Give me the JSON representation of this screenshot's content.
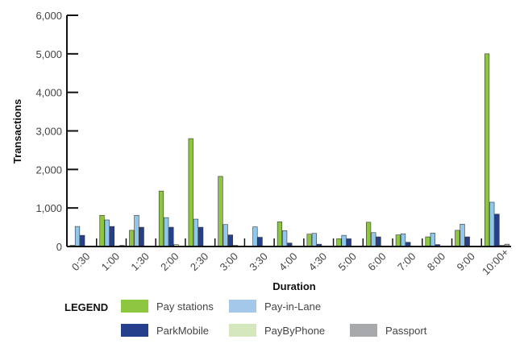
{
  "chart_data": {
    "type": "bar",
    "title": "",
    "xlabel": "Duration",
    "ylabel": "Transactions",
    "ylim": [
      0,
      6000
    ],
    "yticks": [
      0,
      1000,
      2000,
      3000,
      4000,
      5000,
      6000
    ],
    "ytick_labels": [
      "0",
      "1,000",
      "2,000",
      "3,000",
      "4,000",
      "5,000",
      "6,000"
    ],
    "grid": false,
    "legend_position": "bottom",
    "categories": [
      "0:30",
      "1:00",
      "1:30",
      "2:00",
      "2:30",
      "3:00",
      "3:30",
      "4:00",
      "4:30",
      "5:00",
      "6:00",
      "7:00",
      "8:00",
      "9:00",
      "10:00+"
    ],
    "series": [
      {
        "name": "Pay stations",
        "color": "#8dc63f",
        "values": [
          30,
          810,
          420,
          1440,
          2800,
          1820,
          0,
          640,
          320,
          200,
          630,
          300,
          250,
          420,
          5000
        ]
      },
      {
        "name": "Pay-in-Lane",
        "color": "#8fc8ec",
        "values": [
          520,
          690,
          810,
          750,
          710,
          570,
          510,
          410,
          340,
          290,
          360,
          330,
          350,
          580,
          1150
        ]
      },
      {
        "name": "ParkMobile",
        "color": "#263f8c",
        "values": [
          290,
          520,
          500,
          500,
          500,
          300,
          240,
          90,
          60,
          200,
          250,
          110,
          50,
          250,
          840
        ]
      },
      {
        "name": "PayByPhone",
        "color": "#d5e8bd",
        "values": [
          0,
          0,
          0,
          50,
          0,
          30,
          0,
          0,
          0,
          0,
          0,
          0,
          0,
          0,
          30
        ]
      },
      {
        "name": "Passport",
        "color": "#a7a9ac",
        "values": [
          0,
          30,
          0,
          0,
          0,
          0,
          0,
          0,
          0,
          0,
          0,
          0,
          0,
          0,
          60
        ]
      }
    ]
  },
  "legend": {
    "title": "LEGEND",
    "items": [
      {
        "label": "Pay stations",
        "color": "#8dc63f"
      },
      {
        "label": "Pay-in-Lane",
        "color": "#a4c8ea"
      },
      {
        "label": "ParkMobile",
        "color": "#263f8c"
      },
      {
        "label": "PayByPhone",
        "color": "#d5e8bd"
      },
      {
        "label": "Passport",
        "color": "#a7a9ac"
      }
    ]
  }
}
